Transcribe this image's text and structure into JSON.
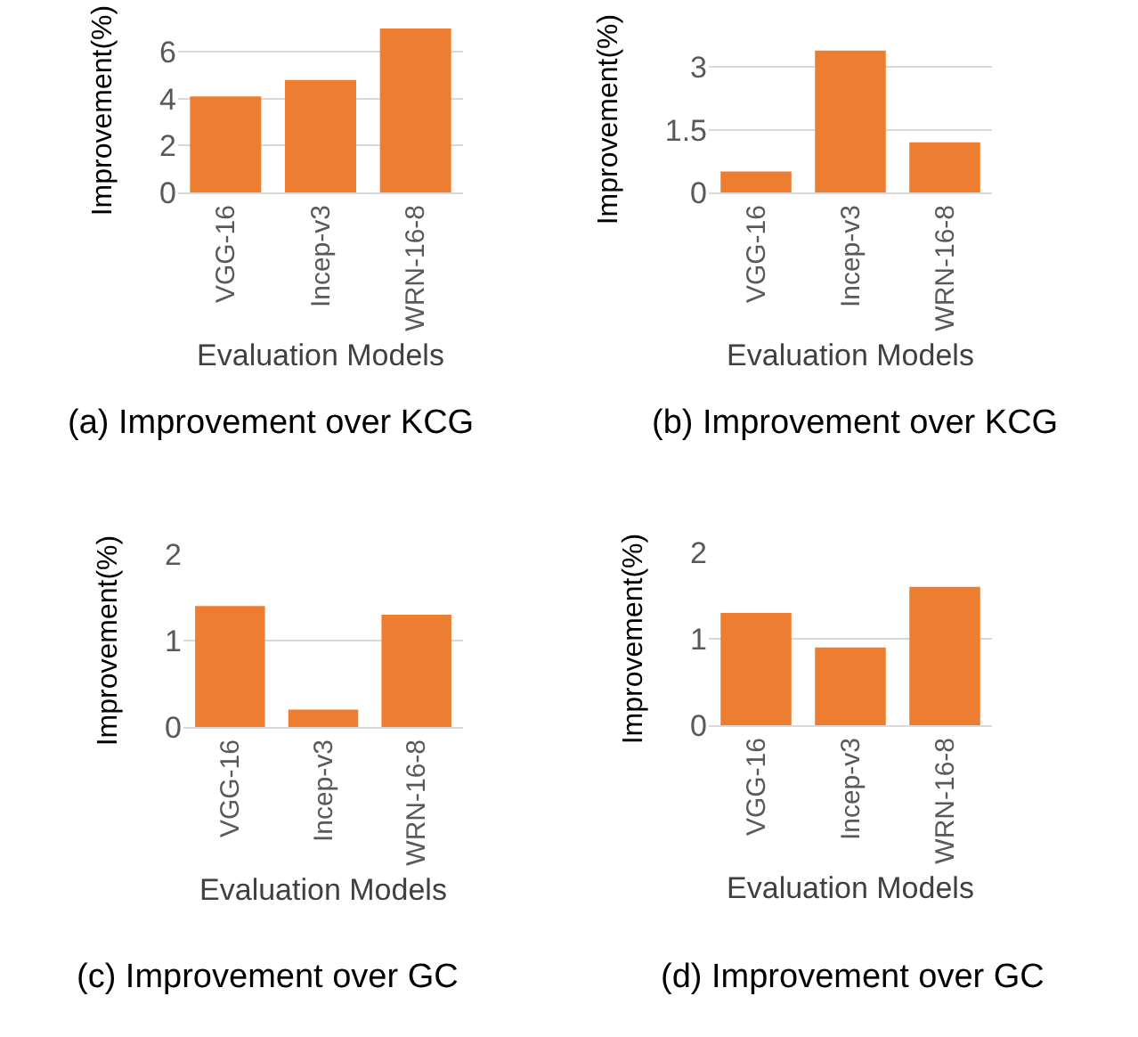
{
  "chart_data": [
    {
      "type": "bar",
      "title": "(a) Improvement over KCG",
      "xlabel": "Evaluation Models",
      "ylabel": "Improvement(%)",
      "categories": [
        "VGG-16",
        "Incep-v3",
        "WRN-16-8"
      ],
      "values": [
        4.1,
        4.8,
        7.0
      ],
      "color": "#ed7d31",
      "ylim": [
        0,
        7
      ],
      "yticks": [
        0,
        2,
        4,
        6
      ],
      "grid": "y"
    },
    {
      "type": "bar",
      "title": "(b) Improvement over KCG",
      "xlabel": "Evaluation Models",
      "ylabel": "Improvement(%)",
      "categories": [
        "VGG-16",
        "Incep-v3",
        "WRN-16-8"
      ],
      "values": [
        0.5,
        3.4,
        1.2
      ],
      "color": "#ed7d31",
      "ylim": [
        0,
        3.5
      ],
      "yticks": [
        0,
        1.5,
        3
      ],
      "grid": "y"
    },
    {
      "type": "bar",
      "title": "(c) Improvement over GC",
      "xlabel": "Evaluation Models",
      "ylabel": "Improvement(%)",
      "categories": [
        "VGG-16",
        "Incep-v3",
        "WRN-16-8"
      ],
      "values": [
        1.4,
        0.2,
        1.3
      ],
      "color": "#ed7d31",
      "ylim": [
        0,
        2
      ],
      "yticks": [
        0,
        1,
        2
      ],
      "grid": "y"
    },
    {
      "type": "bar",
      "title": "(d) Improvement over GC",
      "xlabel": "Evaluation Models",
      "ylabel": "Improvement(%)",
      "categories": [
        "VGG-16",
        "Incep-v3",
        "WRN-16-8"
      ],
      "values": [
        1.3,
        0.9,
        1.6
      ],
      "color": "#ed7d31",
      "ylim": [
        0,
        2
      ],
      "yticks": [
        0,
        1,
        2
      ],
      "grid": "y"
    }
  ]
}
